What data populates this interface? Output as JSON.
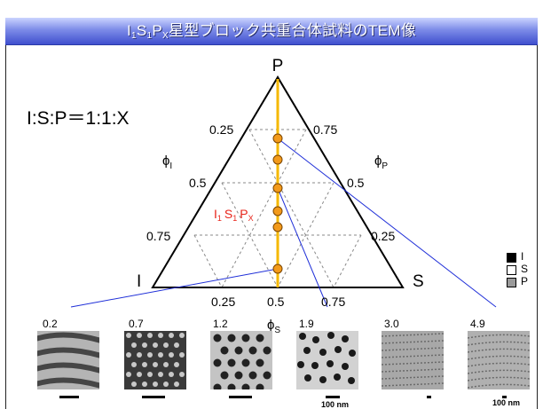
{
  "title": {
    "prefix": "I",
    "sub1": "1",
    "s": "S",
    "sub2": "1",
    "p": "P",
    "sub3": "X",
    "rest": "星型ブロック共重合体試料のTEM像"
  },
  "ratio_label": "I:S:P＝1:1:X",
  "vertices": {
    "top": "P",
    "left": "I",
    "right": "S"
  },
  "axes": {
    "left_label": "ϕ",
    "left_sub": "I",
    "right_label": "ϕ",
    "right_sub": "P",
    "bottom_label": "ϕ",
    "bottom_sub": "S"
  },
  "ticks": {
    "left": [
      "0.25",
      "0.5",
      "0.75"
    ],
    "right": [
      "0.75",
      "0.5",
      "0.25"
    ],
    "bottom": [
      "0.25",
      "0.5",
      "0.75"
    ]
  },
  "sample_label": {
    "a": "I",
    "a_sub": "1",
    "b": "S",
    "b_sub": "1",
    "c": "P",
    "c_sub": "X"
  },
  "legend": [
    {
      "label": "I",
      "color": "#000000"
    },
    {
      "label": "S",
      "color": "#ffffff"
    },
    {
      "label": "P",
      "color": "#9a9a9a"
    }
  ],
  "samples": [
    {
      "x": "0.2",
      "pattern": "lamellae-icon"
    },
    {
      "x": "0.7",
      "pattern": "hexagonal-pattern-icon"
    },
    {
      "x": "1.2",
      "pattern": "dot-pattern-icon"
    },
    {
      "x": "1.9",
      "pattern": "cylinder-pattern-icon"
    },
    {
      "x": "3.0",
      "pattern": "fine-lamellae-icon"
    },
    {
      "x": "4.9",
      "pattern": "fine-lamellae-icon"
    }
  ],
  "scale_text": "100 nm",
  "colors": {
    "line": "#f5b800",
    "dot": "#f39a1a",
    "connector": "#1f2fd8",
    "sample_text": "#e8241a"
  }
}
